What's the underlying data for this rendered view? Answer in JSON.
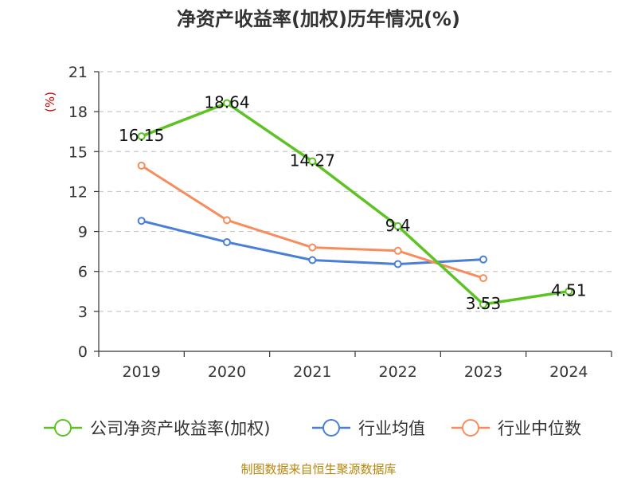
{
  "chart_data": {
    "type": "line",
    "title": "净资产收益率(加权)历年情况(%)",
    "ylabel": "(%)",
    "xlabel": "",
    "categories": [
      "2019",
      "2020",
      "2021",
      "2022",
      "2023",
      "2024"
    ],
    "ylim": [
      0,
      21
    ],
    "yticks": [
      0,
      3,
      6,
      9,
      12,
      15,
      18,
      21
    ],
    "grid": true,
    "legend_position": "bottom",
    "series": [
      {
        "name": "公司净资产收益率(加权)",
        "color": "#5dc224",
        "values": [
          16.15,
          18.64,
          14.27,
          9.4,
          3.53,
          4.51
        ],
        "labels": [
          "16.15",
          "18.64",
          "14.27",
          "9.4",
          "3.53",
          "4.51"
        ]
      },
      {
        "name": "行业均值",
        "color": "#4a7fd8",
        "values": [
          9.8,
          8.2,
          6.85,
          6.55,
          6.9,
          null
        ]
      },
      {
        "name": "行业中位数",
        "color": "#f68d5c",
        "values": [
          13.95,
          9.85,
          7.8,
          7.55,
          5.5,
          null
        ]
      }
    ],
    "source": "制图数据来自恒生聚源数据库"
  }
}
